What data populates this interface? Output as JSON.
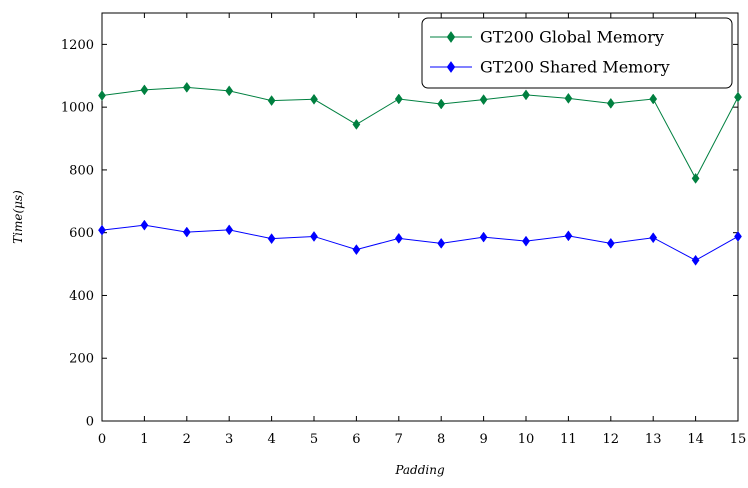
{
  "chart_data": {
    "type": "line",
    "title": "",
    "xlabel": "Padding",
    "ylabel": "Time(μs)",
    "x": [
      0,
      1,
      2,
      3,
      4,
      5,
      6,
      7,
      8,
      9,
      10,
      11,
      12,
      13,
      14,
      15
    ],
    "xlim": [
      0,
      15
    ],
    "ylim": [
      0,
      1300
    ],
    "xticks": [
      0,
      1,
      2,
      3,
      4,
      5,
      6,
      7,
      8,
      9,
      10,
      11,
      12,
      13,
      14,
      15
    ],
    "yticks": [
      0,
      200,
      400,
      600,
      800,
      1000,
      1200
    ],
    "grid": false,
    "legend_position": "top-right",
    "series": [
      {
        "name": "GT200 Global Memory",
        "color": "#008040",
        "marker": "diamond",
        "values": [
          1037,
          1055,
          1063,
          1052,
          1021,
          1025,
          945,
          1026,
          1010,
          1024,
          1039,
          1028,
          1012,
          1026,
          773,
          1032
        ]
      },
      {
        "name": "GT200 Shared Memory",
        "color": "#0000ff",
        "marker": "diamond",
        "values": [
          608,
          624,
          602,
          609,
          581,
          588,
          546,
          582,
          566,
          586,
          573,
          590,
          566,
          584,
          512,
          588
        ]
      }
    ]
  }
}
